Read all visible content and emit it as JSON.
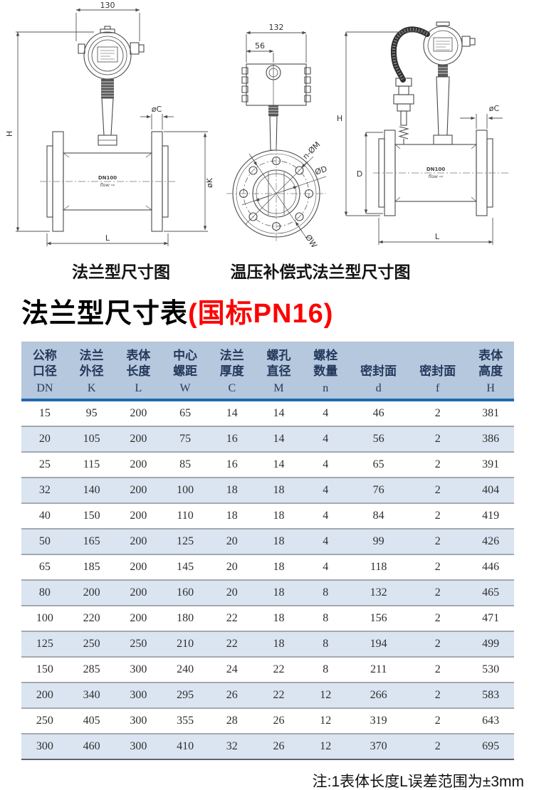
{
  "title": {
    "main": "法兰型尺寸表",
    "highlight": "(国标PN16)"
  },
  "note": "注:1表体长度L误差范围为±3mm",
  "colors": {
    "highlight": "#fe0000",
    "header_bg": "#b6c8de",
    "header_rule": "#2268ae",
    "stripe_bg": "#dbe5f1",
    "row_rule": "#a3a9b0"
  },
  "diagrams": {
    "flange_side": {
      "caption": "法兰型尺寸图",
      "dim_width": "130",
      "dim_height": "H",
      "dim_flange_thickness": "øC",
      "dim_flange_diameter": "øK",
      "dim_length": "L",
      "body_label": "DN100",
      "flow_label": "flow ⇨"
    },
    "flange_front": {
      "dim_width": "132",
      "dim_conduit_offset": "56",
      "dim_bolt_holes": "n-ØM",
      "dim_bore": "ØD",
      "dim_bolt_circle": "ØW"
    },
    "compensated_side": {
      "caption": "温压补偿式法兰型尺寸图",
      "dim_height": "H",
      "dim_body_diameter": "D",
      "dim_flange_thickness": "øC",
      "dim_length": "L",
      "body_label": "DN100",
      "flow_label": "flow ⇨"
    }
  },
  "table": {
    "columns": [
      {
        "lines": [
          "公称",
          "口径"
        ],
        "symbol": "DN"
      },
      {
        "lines": [
          "法兰",
          "外径"
        ],
        "symbol": "K"
      },
      {
        "lines": [
          "表体",
          "长度"
        ],
        "symbol": "L"
      },
      {
        "lines": [
          "中心",
          "螺距"
        ],
        "symbol": "W"
      },
      {
        "lines": [
          "法兰",
          "厚度"
        ],
        "symbol": "C"
      },
      {
        "lines": [
          "螺孔",
          "直径"
        ],
        "symbol": "M"
      },
      {
        "lines": [
          "螺栓",
          "数量"
        ],
        "symbol": "n"
      },
      {
        "lines": [
          "密封面"
        ],
        "symbol": "d"
      },
      {
        "lines": [
          "密封面"
        ],
        "symbol": "f"
      },
      {
        "lines": [
          "表体",
          "高度"
        ],
        "symbol": "H"
      }
    ],
    "rows": [
      [
        15,
        95,
        200,
        65,
        14,
        14,
        4,
        46,
        2,
        381
      ],
      [
        20,
        105,
        200,
        75,
        16,
        14,
        4,
        56,
        2,
        386
      ],
      [
        25,
        115,
        200,
        85,
        16,
        14,
        4,
        65,
        2,
        391
      ],
      [
        32,
        140,
        200,
        100,
        18,
        18,
        4,
        76,
        2,
        404
      ],
      [
        40,
        150,
        200,
        110,
        18,
        18,
        4,
        84,
        2,
        419
      ],
      [
        50,
        165,
        200,
        125,
        20,
        18,
        4,
        99,
        2,
        426
      ],
      [
        65,
        185,
        200,
        145,
        20,
        18,
        4,
        118,
        2,
        446
      ],
      [
        80,
        200,
        200,
        160,
        20,
        18,
        8,
        132,
        2,
        465
      ],
      [
        100,
        220,
        200,
        180,
        22,
        18,
        8,
        156,
        2,
        471
      ],
      [
        125,
        250,
        250,
        210,
        22,
        18,
        8,
        194,
        2,
        499
      ],
      [
        150,
        285,
        300,
        240,
        24,
        22,
        8,
        211,
        2,
        530
      ],
      [
        200,
        340,
        300,
        295,
        26,
        22,
        12,
        266,
        2,
        583
      ],
      [
        250,
        405,
        300,
        355,
        28,
        26,
        12,
        319,
        2,
        643
      ],
      [
        300,
        460,
        300,
        410,
        32,
        26,
        12,
        370,
        2,
        695
      ]
    ]
  }
}
